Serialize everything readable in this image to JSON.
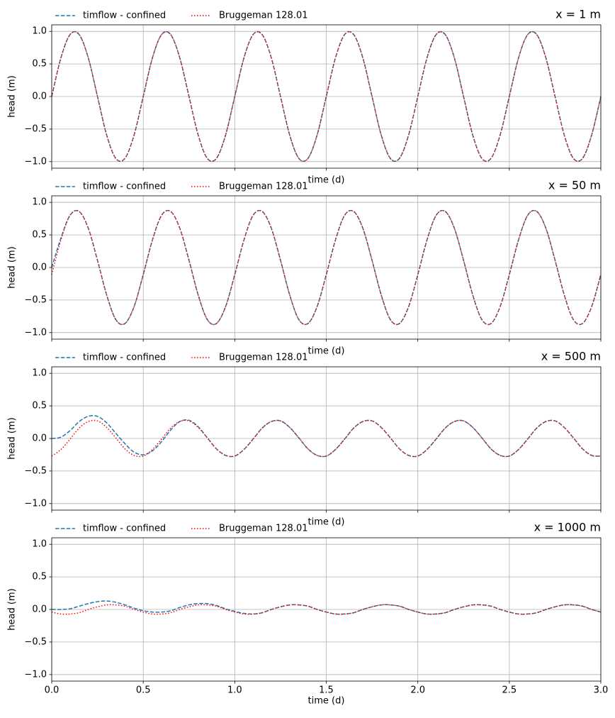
{
  "chart_data": [
    {
      "type": "line",
      "title": "x = 1 m",
      "xlabel": "time (d)",
      "ylabel": "head (m)",
      "legend": "upper left outside",
      "grid": true,
      "xlim": [
        0,
        3
      ],
      "ylim": [
        -1.1,
        1.1
      ],
      "xticks": [
        0,
        0.5,
        1,
        1.5,
        2,
        2.5,
        3
      ],
      "yticks": [
        {
          "value": -1,
          "label": "−1.0"
        },
        {
          "value": -0.5,
          "label": "−0.5"
        },
        {
          "value": 0,
          "label": "0.0"
        },
        {
          "value": 0.5,
          "label": "0.5"
        },
        {
          "value": 1,
          "label": "1.0"
        }
      ],
      "x": [
        0,
        0.05,
        0.1,
        0.15,
        0.2,
        0.25,
        0.3,
        0.35,
        0.4,
        0.45,
        0.5,
        0.55,
        0.6,
        0.65,
        0.7,
        0.75,
        0.8,
        0.85,
        0.9,
        0.95,
        1,
        1.05,
        1.1,
        1.15,
        1.2,
        1.25,
        1.3,
        1.35,
        1.4,
        1.45,
        1.5,
        1.55,
        1.6,
        1.65,
        1.7,
        1.75,
        1.8,
        1.85,
        1.9,
        1.95,
        2,
        2.05,
        2.1,
        2.15,
        2.2,
        2.25,
        2.3,
        2.35,
        2.4,
        2.45,
        2.5,
        2.55,
        2.6,
        2.65,
        2.7,
        2.75,
        2.8,
        2.85,
        2.9,
        2.95,
        3
      ],
      "series": [
        {
          "name": "timflow - confined",
          "color": "#1f77b4",
          "linestyle": "dashed",
          "values": [
            0,
            0.59,
            0.95,
            0.95,
            0.59,
            0,
            -0.59,
            -0.95,
            -0.95,
            -0.59,
            0,
            0.59,
            0.95,
            0.95,
            0.59,
            0,
            -0.59,
            -0.95,
            -0.95,
            -0.59,
            0,
            0.59,
            0.95,
            0.95,
            0.59,
            0,
            -0.59,
            -0.95,
            -0.95,
            -0.59,
            0,
            0.59,
            0.95,
            0.95,
            0.59,
            0,
            -0.59,
            -0.95,
            -0.95,
            -0.59,
            0,
            0.59,
            0.95,
            0.95,
            0.59,
            0,
            -0.59,
            -0.95,
            -0.95,
            -0.59,
            0,
            0.59,
            0.95,
            0.95,
            0.59,
            0,
            -0.59,
            -0.95,
            -0.95,
            -0.59,
            0
          ]
        },
        {
          "name": "Bruggeman 128.01",
          "color": "red",
          "linestyle": "dotted",
          "values": [
            0,
            0.59,
            0.95,
            0.95,
            0.59,
            0,
            -0.59,
            -0.95,
            -0.95,
            -0.59,
            0,
            0.59,
            0.95,
            0.95,
            0.59,
            0,
            -0.59,
            -0.95,
            -0.95,
            -0.59,
            0,
            0.59,
            0.95,
            0.95,
            0.59,
            0,
            -0.59,
            -0.95,
            -0.95,
            -0.59,
            0,
            0.59,
            0.95,
            0.95,
            0.59,
            0,
            -0.59,
            -0.95,
            -0.95,
            -0.59,
            0,
            0.59,
            0.95,
            0.95,
            0.59,
            0,
            -0.59,
            -0.95,
            -0.95,
            -0.59,
            0,
            0.59,
            0.95,
            0.95,
            0.59,
            0,
            -0.59,
            -0.95,
            -0.95,
            -0.59,
            0
          ]
        }
      ]
    },
    {
      "type": "line",
      "title": "x = 50 m",
      "xlabel": "time (d)",
      "ylabel": "head (m)",
      "legend": "upper left outside",
      "grid": true,
      "xlim": [
        0,
        3
      ],
      "ylim": [
        -1.1,
        1.1
      ],
      "xticks": [
        0,
        0.5,
        1,
        1.5,
        2,
        2.5,
        3
      ],
      "yticks": [
        {
          "value": -1,
          "label": "−1.0"
        },
        {
          "value": -0.5,
          "label": "−0.5"
        },
        {
          "value": 0,
          "label": "0.0"
        },
        {
          "value": 0.5,
          "label": "0.5"
        },
        {
          "value": 1,
          "label": "1.0"
        }
      ],
      "x": [
        0,
        0.05,
        0.1,
        0.15,
        0.2,
        0.25,
        0.3,
        0.35,
        0.4,
        0.45,
        0.5,
        0.55,
        0.6,
        0.65,
        0.7,
        0.75,
        0.8,
        0.85,
        0.9,
        0.95,
        1,
        1.05,
        1.1,
        1.15,
        1.2,
        1.25,
        1.3,
        1.35,
        1.4,
        1.45,
        1.5,
        1.55,
        1.6,
        1.65,
        1.7,
        1.75,
        1.8,
        1.85,
        1.9,
        1.95,
        2,
        2.05,
        2.1,
        2.15,
        2.2,
        2.25,
        2.3,
        2.35,
        2.4,
        2.45,
        2.5,
        2.55,
        2.6,
        2.65,
        2.7,
        2.75,
        2.8,
        2.85,
        2.9,
        2.95,
        3
      ],
      "series": [
        {
          "name": "timflow - confined",
          "color": "#1f77b4",
          "linestyle": "dashed",
          "values": [
            0,
            0.45,
            0.8,
            0.86,
            0.6,
            0.11,
            -0.42,
            -0.8,
            -0.86,
            -0.6,
            -0.11,
            0.42,
            0.8,
            0.86,
            0.6,
            0.11,
            -0.42,
            -0.8,
            -0.86,
            -0.6,
            -0.11,
            0.42,
            0.8,
            0.86,
            0.6,
            0.11,
            -0.42,
            -0.8,
            -0.86,
            -0.6,
            -0.11,
            0.42,
            0.8,
            0.86,
            0.6,
            0.11,
            -0.42,
            -0.8,
            -0.86,
            -0.6,
            -0.11,
            0.42,
            0.8,
            0.86,
            0.6,
            0.11,
            -0.42,
            -0.8,
            -0.86,
            -0.6,
            -0.11,
            0.42,
            0.8,
            0.86,
            0.6,
            0.11,
            -0.42,
            -0.8,
            -0.86,
            -0.6,
            -0.11
          ]
        },
        {
          "name": "Bruggeman 128.01",
          "color": "red",
          "linestyle": "dotted",
          "values": [
            -0.11,
            0.42,
            0.8,
            0.86,
            0.6,
            0.11,
            -0.42,
            -0.8,
            -0.86,
            -0.6,
            -0.11,
            0.42,
            0.8,
            0.86,
            0.6,
            0.11,
            -0.42,
            -0.8,
            -0.86,
            -0.6,
            -0.11,
            0.42,
            0.8,
            0.86,
            0.6,
            0.11,
            -0.42,
            -0.8,
            -0.86,
            -0.6,
            -0.11,
            0.42,
            0.8,
            0.86,
            0.6,
            0.11,
            -0.42,
            -0.8,
            -0.86,
            -0.6,
            -0.11,
            0.42,
            0.8,
            0.86,
            0.6,
            0.11,
            -0.42,
            -0.8,
            -0.86,
            -0.6,
            -0.11,
            0.42,
            0.8,
            0.86,
            0.6,
            0.11,
            -0.42,
            -0.8,
            -0.86,
            -0.6,
            -0.11
          ]
        }
      ]
    },
    {
      "type": "line",
      "title": "x = 500 m",
      "xlabel": "time (d)",
      "ylabel": "head (m)",
      "legend": "upper left outside",
      "grid": true,
      "xlim": [
        0,
        3
      ],
      "ylim": [
        -1.1,
        1.1
      ],
      "xticks": [
        0,
        0.5,
        1,
        1.5,
        2,
        2.5,
        3
      ],
      "yticks": [
        {
          "value": -1,
          "label": "−1.0"
        },
        {
          "value": -0.5,
          "label": "−0.5"
        },
        {
          "value": 0,
          "label": "0.0"
        },
        {
          "value": 0.5,
          "label": "0.5"
        },
        {
          "value": 1,
          "label": "1.0"
        }
      ],
      "x": [
        0,
        0.05,
        0.1,
        0.15,
        0.2,
        0.25,
        0.3,
        0.35,
        0.4,
        0.45,
        0.5,
        0.55,
        0.6,
        0.65,
        0.7,
        0.75,
        0.8,
        0.85,
        0.9,
        0.95,
        1,
        1.05,
        1.1,
        1.15,
        1.2,
        1.25,
        1.3,
        1.35,
        1.4,
        1.45,
        1.5,
        1.55,
        1.6,
        1.65,
        1.7,
        1.75,
        1.8,
        1.85,
        1.9,
        1.95,
        2,
        2.05,
        2.1,
        2.15,
        2.2,
        2.25,
        2.3,
        2.35,
        2.4,
        2.45,
        2.5,
        2.55,
        2.6,
        2.65,
        2.7,
        2.75,
        2.8,
        2.85,
        2.9,
        2.95,
        3
      ],
      "series": [
        {
          "name": "timflow - confined",
          "color": "#1f77b4",
          "linestyle": "dashed",
          "values": [
            0,
            0.02,
            0.12,
            0.26,
            0.34,
            0.34,
            0.24,
            0.08,
            -0.08,
            -0.21,
            -0.25,
            -0.19,
            -0.05,
            0.13,
            0.26,
            0.28,
            0.18,
            0.01,
            -0.16,
            -0.26,
            -0.27,
            -0.17,
            -0.01,
            0.16,
            0.26,
            0.27,
            0.17,
            0.01,
            -0.16,
            -0.26,
            -0.27,
            -0.17,
            -0.01,
            0.16,
            0.26,
            0.27,
            0.17,
            0.01,
            -0.16,
            -0.26,
            -0.27,
            -0.17,
            -0.01,
            0.16,
            0.26,
            0.27,
            0.17,
            0.01,
            -0.16,
            -0.26,
            -0.27,
            -0.17,
            -0.01,
            0.16,
            0.26,
            0.27,
            0.17,
            0.01,
            -0.16,
            -0.26,
            -0.27
          ]
        },
        {
          "name": "Bruggeman 128.01",
          "color": "red",
          "linestyle": "dotted",
          "values": [
            -0.27,
            -0.17,
            -0.01,
            0.16,
            0.26,
            0.27,
            0.17,
            0.01,
            -0.16,
            -0.26,
            -0.27,
            -0.17,
            -0.01,
            0.16,
            0.26,
            0.27,
            0.17,
            0.01,
            -0.16,
            -0.26,
            -0.27,
            -0.17,
            -0.01,
            0.16,
            0.26,
            0.27,
            0.17,
            0.01,
            -0.16,
            -0.26,
            -0.27,
            -0.17,
            -0.01,
            0.16,
            0.26,
            0.27,
            0.17,
            0.01,
            -0.16,
            -0.26,
            -0.27,
            -0.17,
            -0.01,
            0.16,
            0.26,
            0.27,
            0.17,
            0.01,
            -0.16,
            -0.26,
            -0.27,
            -0.17,
            -0.01,
            0.16,
            0.26,
            0.27,
            0.17,
            0.01,
            -0.16,
            -0.26,
            -0.27
          ]
        }
      ]
    },
    {
      "type": "line",
      "title": "x = 1000 m",
      "xlabel": "time (d)",
      "ylabel": "head (m)",
      "legend": "upper left outside",
      "grid": true,
      "xlim": [
        0,
        3
      ],
      "ylim": [
        -1.1,
        1.1
      ],
      "xticks": [
        {
          "value": 0,
          "label": "0.0"
        },
        {
          "value": 0.5,
          "label": "0.5"
        },
        {
          "value": 1,
          "label": "1.0"
        },
        {
          "value": 1.5,
          "label": "1.5"
        },
        {
          "value": 2,
          "label": "2.0"
        },
        {
          "value": 2.5,
          "label": "2.5"
        },
        {
          "value": 3,
          "label": "3.0"
        }
      ],
      "yticks": [
        {
          "value": -1,
          "label": "−1.0"
        },
        {
          "value": -0.5,
          "label": "−0.5"
        },
        {
          "value": 0,
          "label": "0.0"
        },
        {
          "value": 0.5,
          "label": "0.5"
        },
        {
          "value": 1,
          "label": "1.0"
        }
      ],
      "x": [
        0,
        0.05,
        0.1,
        0.15,
        0.2,
        0.25,
        0.3,
        0.35,
        0.4,
        0.45,
        0.5,
        0.55,
        0.6,
        0.65,
        0.7,
        0.75,
        0.8,
        0.85,
        0.9,
        0.95,
        1,
        1.05,
        1.1,
        1.15,
        1.2,
        1.25,
        1.3,
        1.35,
        1.4,
        1.45,
        1.5,
        1.55,
        1.6,
        1.65,
        1.7,
        1.75,
        1.8,
        1.85,
        1.9,
        1.95,
        2,
        2.05,
        2.1,
        2.15,
        2.2,
        2.25,
        2.3,
        2.35,
        2.4,
        2.45,
        2.5,
        2.55,
        2.6,
        2.65,
        2.7,
        2.75,
        2.8,
        2.85,
        2.9,
        2.95,
        3
      ],
      "series": [
        {
          "name": "timflow - confined",
          "color": "#1f77b4",
          "linestyle": "dashed",
          "values": [
            0,
            0,
            0.01,
            0.05,
            0.09,
            0.12,
            0.13,
            0.11,
            0.07,
            0.02,
            -0.02,
            -0.04,
            -0.04,
            -0.02,
            0.03,
            0.07,
            0.09,
            0.09,
            0.06,
            0.01,
            -0.03,
            -0.06,
            -0.07,
            -0.05,
            0,
            0.04,
            0.07,
            0.07,
            0.05,
            0,
            -0.04,
            -0.07,
            -0.07,
            -0.05,
            0,
            0.04,
            0.07,
            0.07,
            0.05,
            0,
            -0.04,
            -0.07,
            -0.07,
            -0.05,
            0,
            0.04,
            0.07,
            0.07,
            0.05,
            0,
            -0.04,
            -0.07,
            -0.07,
            -0.05,
            0,
            0.04,
            0.07,
            0.07,
            0.05,
            0,
            -0.04
          ]
        },
        {
          "name": "Bruggeman 128.01",
          "color": "red",
          "linestyle": "dotted",
          "values": [
            -0.04,
            -0.07,
            -0.07,
            -0.05,
            0,
            0.04,
            0.07,
            0.07,
            0.05,
            0,
            -0.04,
            -0.07,
            -0.07,
            -0.05,
            0,
            0.04,
            0.07,
            0.07,
            0.05,
            0,
            -0.04,
            -0.07,
            -0.07,
            -0.05,
            0,
            0.04,
            0.07,
            0.07,
            0.05,
            0,
            -0.04,
            -0.07,
            -0.07,
            -0.05,
            0,
            0.04,
            0.07,
            0.07,
            0.05,
            0,
            -0.04,
            -0.07,
            -0.07,
            -0.05,
            0,
            0.04,
            0.07,
            0.07,
            0.05,
            0,
            -0.04,
            -0.07,
            -0.07,
            -0.05,
            0,
            0.04,
            0.07,
            0.07,
            0.05,
            0,
            -0.04
          ]
        }
      ]
    }
  ]
}
